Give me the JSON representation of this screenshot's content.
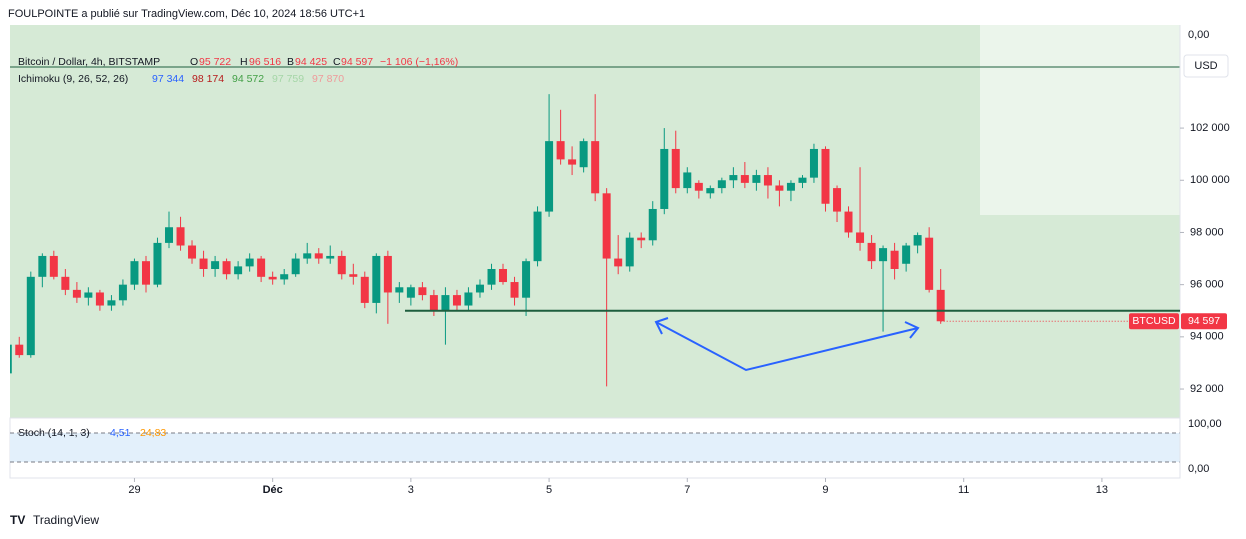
{
  "header": {
    "publisher": "FOULPOINTE a publié sur TradingView.com, Déc 10, 2024 18:56 UTC+1",
    "symbol": "Bitcoin / Dollar, 4h, BITSTAMP",
    "o_key": "O",
    "o": "95 722",
    "h_key": "H",
    "h": "96 516",
    "b_key": "B",
    "b": "94 425",
    "c_key": "C",
    "c": "94 597",
    "change": "−1 106 (−1,16%)",
    "ichimoku": "Ichimoku (9, 26, 52, 26)",
    "ich_values": [
      "97 344",
      "98 174",
      "94 572",
      "97 759",
      "97 870"
    ],
    "stoch": "Stoch (14, 1, 3)",
    "stoch_values": [
      "4,51",
      "24,83"
    ],
    "currency": "USD",
    "axis_top_label": "0,00",
    "stoch_ticks": [
      "100,00",
      "0,00"
    ],
    "brand": "TradingView"
  },
  "chart_data": {
    "type": "candlestick",
    "series_name": "BTCUSD",
    "last_label": "94 597",
    "up_color": "#089981",
    "down_color": "#f23645",
    "hline": 95000,
    "hline_color": "#1e5e3e",
    "xlim": [
      -0.801,
      16.13
    ],
    "ylim": [
      90890,
      105950
    ],
    "xticks": [
      {
        "value": 1,
        "label": "29"
      },
      {
        "value": 3,
        "label": "Déc"
      },
      {
        "value": 5,
        "label": "3"
      },
      {
        "value": 7,
        "label": "5"
      },
      {
        "value": 9,
        "label": "7"
      },
      {
        "value": 11,
        "label": "9"
      },
      {
        "value": 13,
        "label": "11"
      },
      {
        "value": 15,
        "label": "13"
      }
    ],
    "yticks": [
      {
        "value": 92000,
        "label": "92 000"
      },
      {
        "value": 94000,
        "label": "94 000"
      },
      {
        "value": 96000,
        "label": "96 000"
      },
      {
        "value": 98000,
        "label": "98 000"
      },
      {
        "value": 100000,
        "label": "100 000"
      },
      {
        "value": 102000,
        "label": "102 000"
      }
    ],
    "x": [
      -0.833,
      -0.667,
      -0.5,
      -0.333,
      -0.167,
      0,
      0.167,
      0.333,
      0.5,
      0.667,
      0.833,
      1,
      1.167,
      1.333,
      1.5,
      1.667,
      1.833,
      2,
      2.167,
      2.333,
      2.5,
      2.667,
      2.833,
      3,
      3.167,
      3.333,
      3.5,
      3.667,
      3.833,
      4,
      4.167,
      4.333,
      4.5,
      4.667,
      4.833,
      5,
      5.167,
      5.333,
      5.5,
      5.667,
      5.833,
      6,
      6.167,
      6.333,
      6.5,
      6.667,
      6.833,
      7,
      7.167,
      7.333,
      7.5,
      7.667,
      7.833,
      8,
      8.167,
      8.333,
      8.5,
      8.667,
      8.833,
      9,
      9.167,
      9.333,
      9.5,
      9.667,
      9.833,
      10,
      10.167,
      10.333,
      10.5,
      10.667,
      10.833,
      11,
      11.167,
      11.333,
      11.5,
      11.667,
      11.833,
      12,
      12.167,
      12.333,
      12.5,
      12.667
    ],
    "ohlc": [
      [
        92600,
        93900,
        92500,
        93700
      ],
      [
        93700,
        94000,
        93200,
        93300
      ],
      [
        93300,
        96500,
        93200,
        96300
      ],
      [
        96300,
        97200,
        95900,
        97100
      ],
      [
        97100,
        97300,
        96200,
        96300
      ],
      [
        96300,
        96600,
        95600,
        95800
      ],
      [
        95800,
        96100,
        95300,
        95500
      ],
      [
        95500,
        95900,
        95200,
        95700
      ],
      [
        95700,
        95800,
        95000,
        95200
      ],
      [
        95200,
        95600,
        95000,
        95400
      ],
      [
        95400,
        96200,
        95200,
        96000
      ],
      [
        96000,
        97000,
        95800,
        96900
      ],
      [
        96900,
        97100,
        95700,
        96000
      ],
      [
        96000,
        97800,
        95900,
        97600
      ],
      [
        97600,
        98800,
        97400,
        98200
      ],
      [
        98200,
        98600,
        97300,
        97500
      ],
      [
        97500,
        97700,
        96800,
        97000
      ],
      [
        97000,
        97300,
        96300,
        96600
      ],
      [
        96600,
        97100,
        96300,
        96900
      ],
      [
        96900,
        97000,
        96200,
        96400
      ],
      [
        96400,
        96900,
        96200,
        96700
      ],
      [
        96700,
        97200,
        96500,
        97000
      ],
      [
        97000,
        97100,
        96100,
        96300
      ],
      [
        96300,
        96500,
        96000,
        96200
      ],
      [
        96200,
        96600,
        96000,
        96400
      ],
      [
        96400,
        97200,
        96300,
        97000
      ],
      [
        97000,
        97600,
        96800,
        97200
      ],
      [
        97200,
        97400,
        96800,
        97000
      ],
      [
        97000,
        97500,
        96800,
        97100
      ],
      [
        97100,
        97300,
        96200,
        96400
      ],
      [
        96400,
        96800,
        96000,
        96300
      ],
      [
        96300,
        96500,
        95100,
        95300
      ],
      [
        95300,
        97200,
        94900,
        97100
      ],
      [
        97100,
        97300,
        94500,
        95700
      ],
      [
        95700,
        96100,
        95300,
        95900
      ],
      [
        95500,
        96000,
        95200,
        95900
      ],
      [
        95900,
        96100,
        95400,
        95600
      ],
      [
        95600,
        95800,
        94800,
        95000
      ],
      [
        95000,
        95900,
        93700,
        95600
      ],
      [
        95600,
        95800,
        95000,
        95200
      ],
      [
        95200,
        95900,
        95000,
        95700
      ],
      [
        95700,
        96200,
        95500,
        96000
      ],
      [
        96000,
        96800,
        95800,
        96600
      ],
      [
        96600,
        96800,
        96000,
        96100
      ],
      [
        96100,
        96300,
        95200,
        95500
      ],
      [
        95500,
        97000,
        94800,
        96900
      ],
      [
        96900,
        99000,
        96700,
        98800
      ],
      [
        98800,
        103300,
        98600,
        101500
      ],
      [
        101500,
        102700,
        100600,
        100800
      ],
      [
        100800,
        101300,
        100200,
        100600
      ],
      [
        100500,
        101600,
        100300,
        101500
      ],
      [
        101500,
        103300,
        99200,
        99500
      ],
      [
        99500,
        99700,
        92100,
        97000
      ],
      [
        97000,
        97900,
        96400,
        96700
      ],
      [
        96700,
        98000,
        96500,
        97800
      ],
      [
        97800,
        98000,
        97400,
        97700
      ],
      [
        97700,
        99200,
        97500,
        98900
      ],
      [
        98900,
        102000,
        98700,
        101200
      ],
      [
        101200,
        101900,
        99500,
        99700
      ],
      [
        99700,
        100500,
        99500,
        100300
      ],
      [
        99900,
        100000,
        99300,
        99600
      ],
      [
        99500,
        99800,
        99300,
        99700
      ],
      [
        99700,
        100100,
        99500,
        100000
      ],
      [
        100000,
        100500,
        99700,
        100200
      ],
      [
        100200,
        100700,
        99700,
        99900
      ],
      [
        99900,
        100400,
        99600,
        100200
      ],
      [
        100200,
        100500,
        99300,
        99800
      ],
      [
        99800,
        100000,
        99000,
        99600
      ],
      [
        99600,
        100000,
        99200,
        99900
      ],
      [
        99900,
        100200,
        99700,
        100100
      ],
      [
        100100,
        101400,
        99900,
        101200
      ],
      [
        101200,
        101300,
        98800,
        99100
      ],
      [
        99700,
        99800,
        98400,
        98800
      ],
      [
        98800,
        99000,
        97800,
        98000
      ],
      [
        98000,
        100500,
        97300,
        97600
      ],
      [
        97600,
        97900,
        96600,
        96900
      ],
      [
        96900,
        97500,
        94200,
        97400
      ],
      [
        97300,
        97600,
        96200,
        96600
      ],
      [
        96800,
        97600,
        96500,
        97500
      ],
      [
        97500,
        98000,
        97200,
        97900
      ],
      [
        97800,
        98200,
        95700,
        95800
      ],
      [
        95800,
        96600,
        94500,
        94597
      ]
    ]
  }
}
